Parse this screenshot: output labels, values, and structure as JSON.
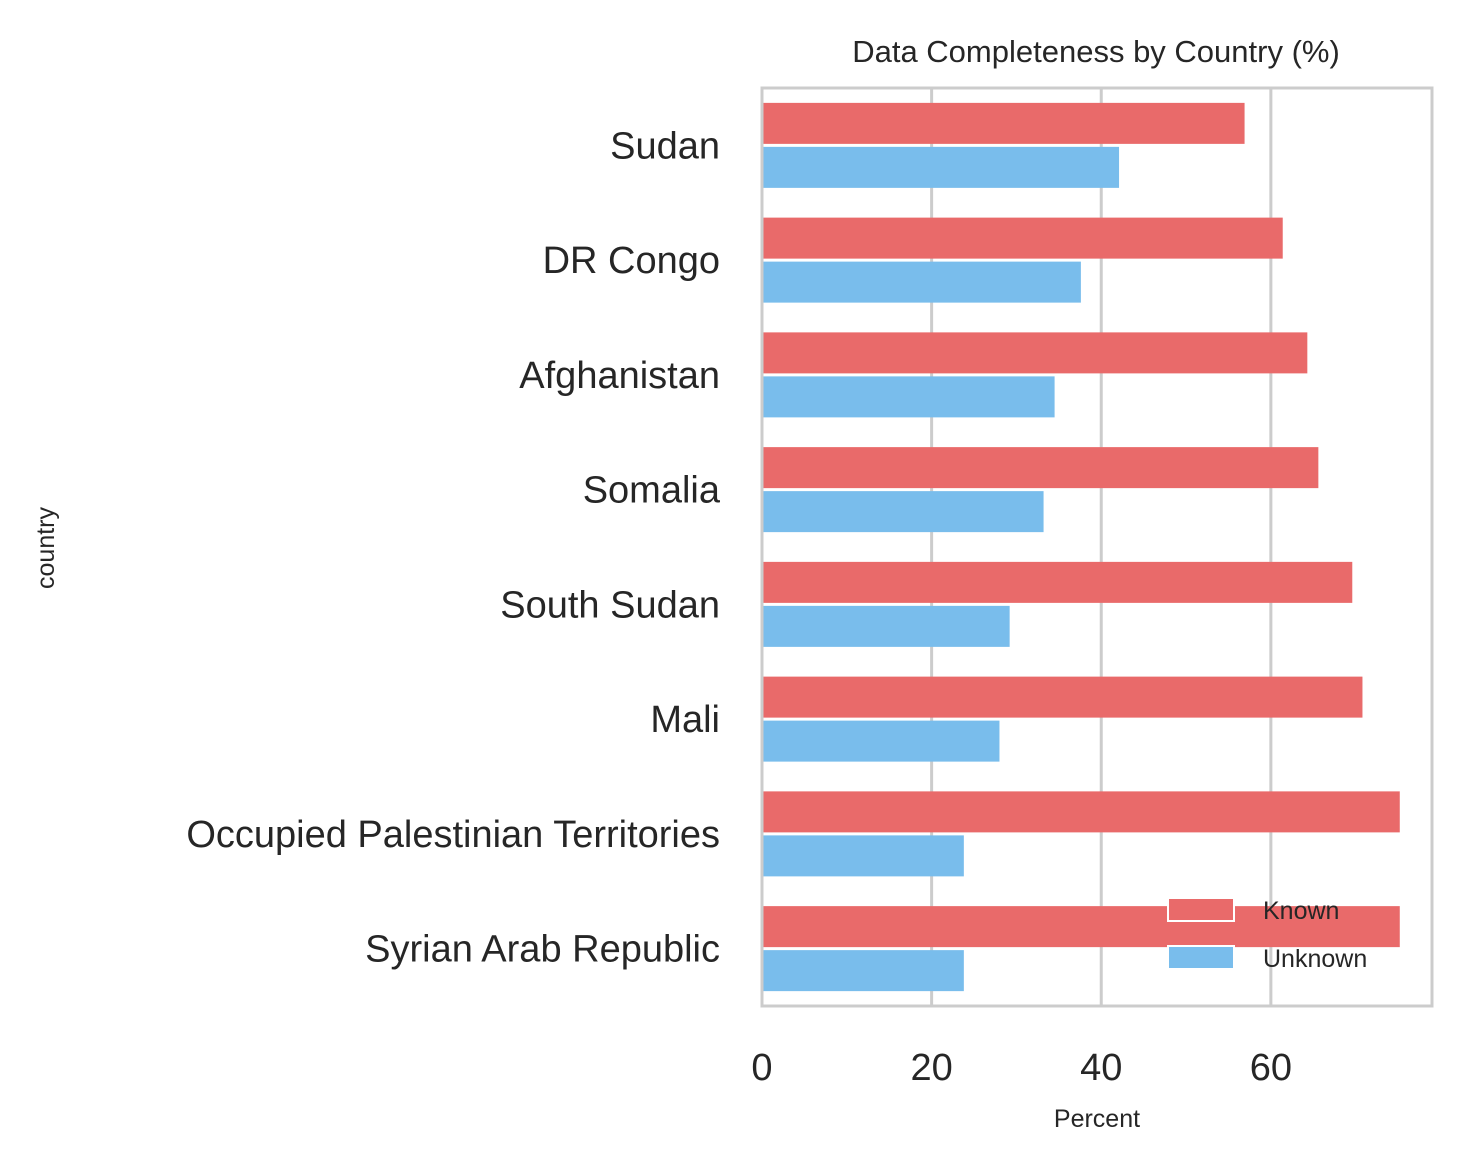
{
  "chart_data": {
    "type": "bar",
    "orientation": "horizontal",
    "title": "Data Completeness by Country (%)",
    "xlabel": "Percent",
    "ylabel": "country",
    "xlim": [
      0,
      79
    ],
    "xticks": [
      0,
      20,
      40,
      60
    ],
    "grid": "vertical",
    "legend_position": "lower-right",
    "categories": [
      "Sudan",
      "DR Congo",
      "Afghanistan",
      "Somalia",
      "South Sudan",
      "Mali",
      "Occupied Palestinian Territories",
      "Syrian Arab Republic"
    ],
    "series": [
      {
        "name": "Known",
        "color": "#e96a6a",
        "values": [
          56.9,
          61.4,
          64.3,
          65.6,
          69.6,
          70.8,
          75.2,
          75.2
        ]
      },
      {
        "name": "Unknown",
        "color": "#79bdec",
        "values": [
          42.1,
          37.6,
          34.5,
          33.2,
          29.2,
          28.0,
          23.8,
          23.8
        ]
      }
    ]
  }
}
